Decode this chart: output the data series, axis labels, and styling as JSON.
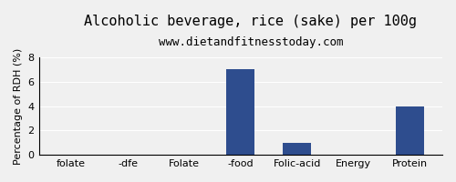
{
  "title": "Alcoholic beverage, rice (sake) per 100g",
  "subtitle": "www.dietandfitnesstoday.com",
  "categories": [
    "folate",
    "-dfe",
    "Folate",
    "-food",
    "Folic-acid",
    "Energy",
    "Protein"
  ],
  "values": [
    0,
    0,
    0,
    7,
    1,
    0,
    4
  ],
  "bar_color": "#2e4d8e",
  "ylabel": "Percentage of RDH (%)",
  "ylim": [
    0,
    8
  ],
  "yticks": [
    0,
    2,
    4,
    6,
    8
  ],
  "background_color": "#f0f0f0",
  "plot_bg_color": "#f0f0f0",
  "title_fontsize": 11,
  "subtitle_fontsize": 9,
  "xlabel_fontsize": 8,
  "ylabel_fontsize": 8
}
